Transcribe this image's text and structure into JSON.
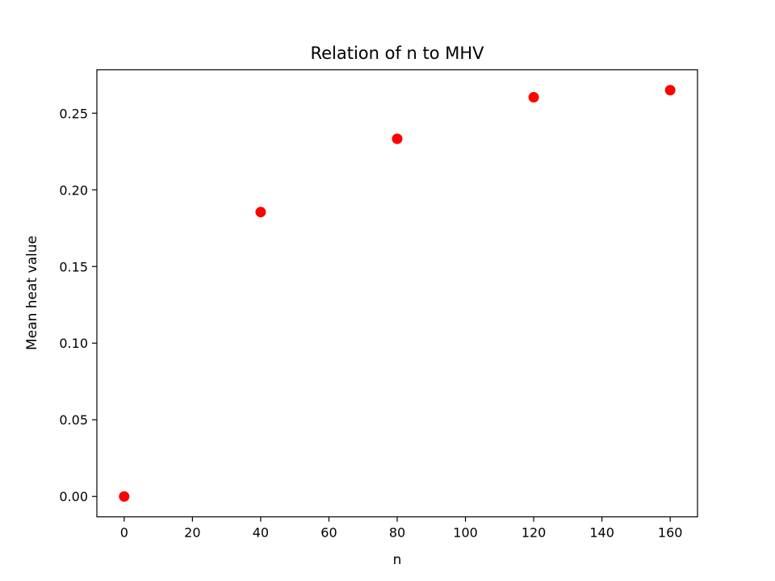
{
  "chart_data": {
    "type": "scatter",
    "title": "Relation of n to MHV",
    "xlabel": "n",
    "ylabel": "Mean heat value",
    "x": [
      0,
      40,
      80,
      120,
      160
    ],
    "y": [
      0.0,
      0.1855,
      0.2333,
      0.2604,
      0.265
    ],
    "xlim": [
      -8,
      168
    ],
    "ylim": [
      -0.0133,
      0.2783
    ],
    "xticks": [
      0,
      20,
      40,
      60,
      80,
      100,
      120,
      140,
      160
    ],
    "xtick_labels": [
      "0",
      "20",
      "40",
      "60",
      "80",
      "100",
      "120",
      "140",
      "160"
    ],
    "yticks": [
      0.0,
      0.05,
      0.1,
      0.15,
      0.2,
      0.25
    ],
    "ytick_labels": [
      "0.00",
      "0.05",
      "0.10",
      "0.15",
      "0.20",
      "0.25"
    ],
    "grid": false,
    "marker_color": "#ff0000"
  }
}
